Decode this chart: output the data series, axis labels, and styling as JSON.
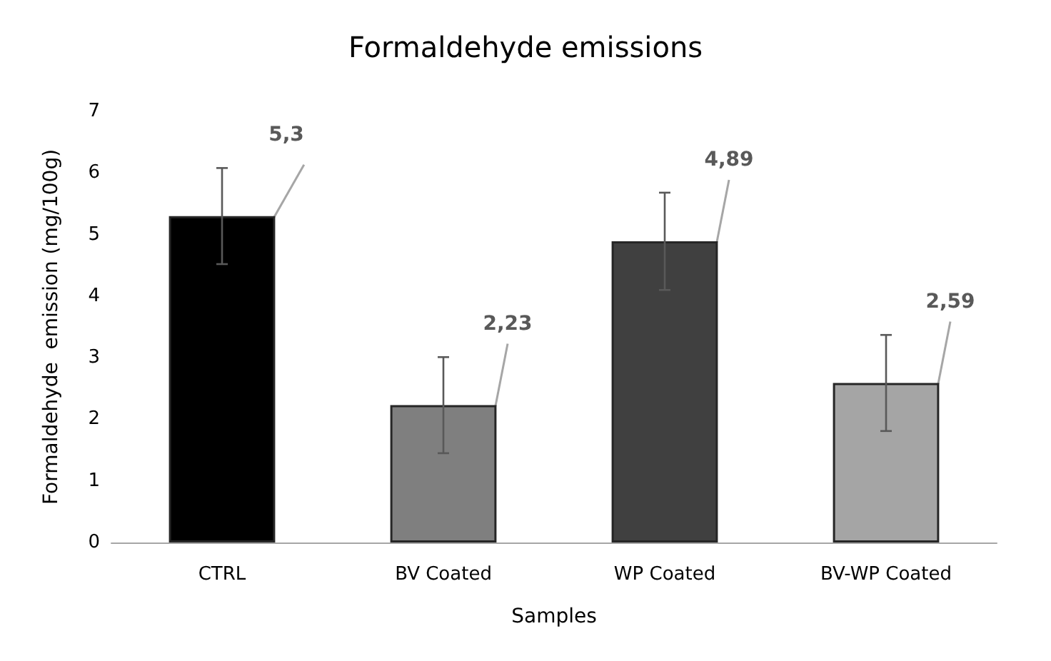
{
  "chart_data": {
    "type": "bar",
    "title": "Formaldehyde emissions",
    "xlabel": "Samples",
    "ylabel": "Formaldehyde  emission (mg/100g)",
    "categories": [
      "CTRL",
      "BV Coated",
      "WP Coated",
      "BV-WP Coated"
    ],
    "values": [
      5.3,
      2.23,
      4.89,
      2.59
    ],
    "colors": [
      "#000000",
      "#7f7f7f",
      "#404040",
      "#a5a5a5"
    ],
    "errors": [
      0.78,
      0.78,
      0.79,
      0.78
    ],
    "value_labels": [
      "5,3",
      "2,23",
      "4,89",
      "2,59"
    ],
    "ylim": [
      0,
      7
    ],
    "yticks": [
      0,
      1,
      2,
      3,
      4,
      5,
      6,
      7
    ]
  }
}
